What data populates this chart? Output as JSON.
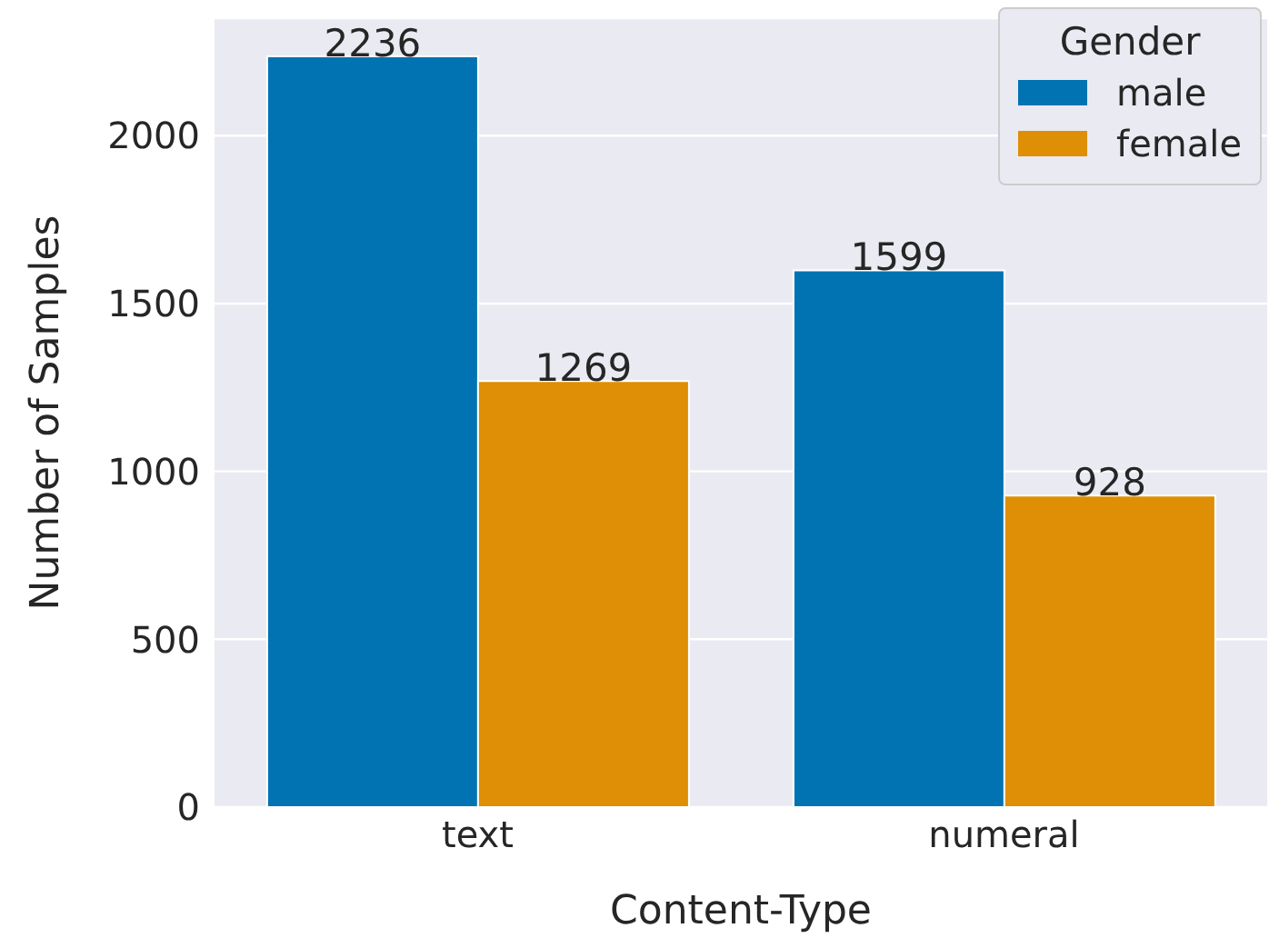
{
  "chart_data": {
    "type": "bar",
    "xlabel": "Content-Type",
    "ylabel": "Number of Samples",
    "legend_title": "Gender",
    "categories": [
      "text",
      "numeral"
    ],
    "series": [
      {
        "name": "male",
        "color": "#0173b2",
        "values": [
          2236,
          1599
        ]
      },
      {
        "name": "female",
        "color": "#de8f05",
        "values": [
          1269,
          928
        ]
      }
    ],
    "ylim": [
      0,
      2350
    ],
    "yticks": [
      0,
      500,
      1000,
      1500,
      2000
    ],
    "grid": "y",
    "legend": "top right",
    "data_labels": true
  }
}
